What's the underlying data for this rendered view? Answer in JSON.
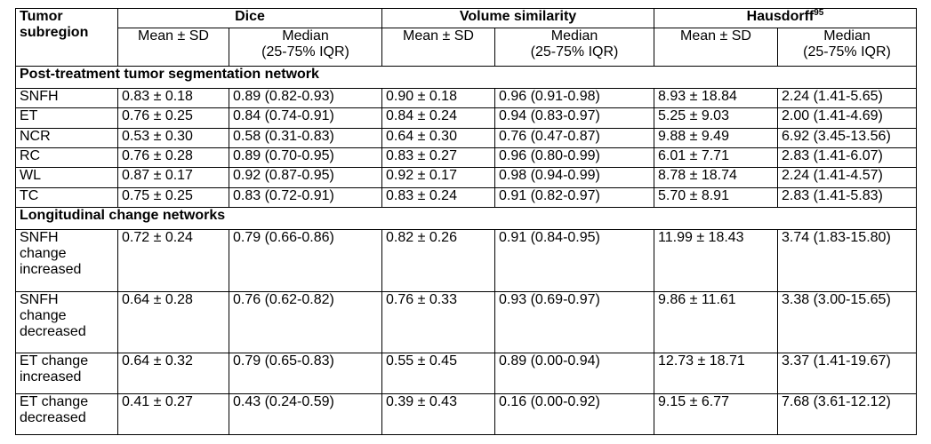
{
  "header": {
    "col1_line1": "Tumor",
    "col1_line2": "subregion",
    "dice": "Dice",
    "volume_similarity": "Volume similarity",
    "hausdorff": "Hausdorff",
    "hausdorff_sup": "95",
    "mean_sd": "Mean ± SD",
    "median_line1": "Median",
    "median_line2": "(25-75% IQR)"
  },
  "sections": {
    "post": "Post-treatment tumor segmentation network",
    "long": "Longitudinal change networks"
  },
  "post_rows": [
    {
      "region": "SNFH",
      "dice_mean": "0.83 ± 0.18",
      "dice_median": "0.89 (0.82-0.93)",
      "vs_mean": "0.90 ± 0.18",
      "vs_median": "0.96 (0.91-0.98)",
      "hd_mean": "8.93 ± 18.84",
      "hd_median": "2.24 (1.41-5.65)"
    },
    {
      "region": "ET",
      "dice_mean": "0.76 ± 0.25",
      "dice_median": "0.84 (0.74-0.91)",
      "vs_mean": "0.84 ± 0.24",
      "vs_median": "0.94 (0.83-0.97)",
      "hd_mean": "5.25 ± 9.03",
      "hd_median": "2.00 (1.41-4.69)"
    },
    {
      "region": "NCR",
      "dice_mean": "0.53 ± 0.30",
      "dice_median": "0.58 (0.31-0.83)",
      "vs_mean": "0.64 ± 0.30",
      "vs_median": "0.76 (0.47-0.87)",
      "hd_mean": "9.88 ± 9.49",
      "hd_median": "6.92 (3.45-13.56)"
    },
    {
      "region": "RC",
      "dice_mean": "0.76 ± 0.28",
      "dice_median": "0.89 (0.70-0.95)",
      "vs_mean": "0.83 ± 0.27",
      "vs_median": "0.96 (0.80-0.99)",
      "hd_mean": "6.01 ± 7.71",
      "hd_median": "2.83 (1.41-6.07)"
    },
    {
      "region": "WL",
      "dice_mean": "0.87 ± 0.17",
      "dice_median": "0.92 (0.87-0.95)",
      "vs_mean": "0.92 ± 0.17",
      "vs_median": "0.98 (0.94-0.99)",
      "hd_mean": "8.78 ± 18.74",
      "hd_median": "2.24 (1.41-4.57)"
    },
    {
      "region": "TC",
      "dice_mean": "0.75 ± 0.25",
      "dice_median": "0.83 (0.72-0.91)",
      "vs_mean": "0.83 ± 0.24",
      "vs_median": "0.91 (0.82-0.97)",
      "hd_mean": "5.70 ± 8.91",
      "hd_median": "2.83 (1.41-5.83)"
    }
  ],
  "long_rows": [
    {
      "region_lines": [
        "SNFH",
        "change",
        "increased"
      ],
      "dice_mean": "0.72 ± 0.24",
      "dice_median": "0.79 (0.66-0.86)",
      "vs_mean": "0.82 ± 0.26",
      "vs_median": "0.91 (0.84-0.95)",
      "hd_mean": "11.99 ± 18.43",
      "hd_median": "3.74 (1.83-15.80)"
    },
    {
      "region_lines": [
        "SNFH",
        "change",
        "decreased"
      ],
      "dice_mean": "0.64 ± 0.28",
      "dice_median": "0.76 (0.62-0.82)",
      "vs_mean": "0.76 ± 0.33",
      "vs_median": "0.93 (0.69-0.97)",
      "hd_mean": "9.86 ± 11.61",
      "hd_median": "3.38 (3.00-15.65)"
    },
    {
      "region_lines": [
        "ET change",
        "increased"
      ],
      "dice_mean": "0.64 ± 0.32",
      "dice_median": "0.79 (0.65-0.83)",
      "vs_mean": "0.55 ± 0.45",
      "vs_median": "0.89 (0.00-0.94)",
      "hd_mean": "12.73 ± 18.71",
      "hd_median": "3.37 (1.41-19.67)"
    },
    {
      "region_lines": [
        "ET change",
        "decreased"
      ],
      "dice_mean": "0.41 ± 0.27",
      "dice_median": "0.43 (0.24-0.59)",
      "vs_mean": "0.39 ± 0.43",
      "vs_median": "0.16 (0.00-0.92)",
      "hd_mean": "9.15 ± 6.77",
      "hd_median": "7.68 (3.61-12.12)"
    }
  ]
}
